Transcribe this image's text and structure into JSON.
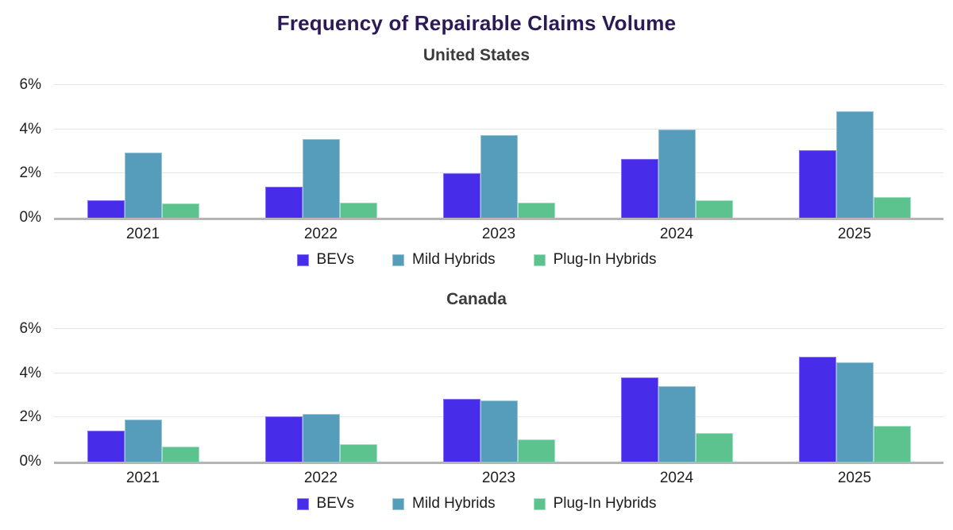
{
  "header": {
    "title": "Frequency of Repairable Claims Volume"
  },
  "colors": {
    "title": "#2c1a56",
    "subtitle": "#3b3b3b",
    "axis_label": "#1f1f1f",
    "gridline": "#e7e7e7",
    "baseline": "#b5b5b5",
    "background": "#ffffff"
  },
  "chart_data": [
    {
      "type": "bar",
      "title": "United States",
      "categories": [
        "2021",
        "2022",
        "2023",
        "2024",
        "2025"
      ],
      "series": [
        {
          "name": "BEVs",
          "color": "#472ce9",
          "border_color": "#8a76f2",
          "values": [
            0.8,
            1.4,
            2.0,
            2.65,
            3.05
          ]
        },
        {
          "name": "Mild Hybrids",
          "color": "#559dbb",
          "border_color": "#9cc6d8",
          "values": [
            2.95,
            3.55,
            3.75,
            4.0,
            4.8
          ]
        },
        {
          "name": "Plug-In Hybrids",
          "color": "#5cc28e",
          "border_color": "#a3dfc2",
          "values": [
            0.65,
            0.7,
            0.7,
            0.8,
            0.95
          ]
        }
      ],
      "ylabel": "",
      "xlabel": "",
      "ylim": [
        0,
        6
      ],
      "yticks": [
        {
          "value": 0,
          "label": "0%"
        },
        {
          "value": 2,
          "label": "2%"
        },
        {
          "value": 4,
          "label": "4%"
        },
        {
          "value": 6,
          "label": "6%"
        }
      ],
      "grid": true,
      "legend_position": "bottom"
    },
    {
      "type": "bar",
      "title": "Canada",
      "categories": [
        "2021",
        "2022",
        "2023",
        "2024",
        "2025"
      ],
      "series": [
        {
          "name": "BEVs",
          "color": "#472ce9",
          "border_color": "#8a76f2",
          "values": [
            1.4,
            2.05,
            2.85,
            3.8,
            4.75
          ]
        },
        {
          "name": "Mild Hybrids",
          "color": "#559dbb",
          "border_color": "#9cc6d8",
          "values": [
            1.9,
            2.15,
            2.75,
            3.4,
            4.5
          ]
        },
        {
          "name": "Plug-In Hybrids",
          "color": "#5cc28e",
          "border_color": "#a3dfc2",
          "values": [
            0.7,
            0.8,
            1.0,
            1.3,
            1.6
          ]
        }
      ],
      "ylabel": "",
      "xlabel": "",
      "ylim": [
        0,
        6
      ],
      "yticks": [
        {
          "value": 0,
          "label": "0%"
        },
        {
          "value": 2,
          "label": "2%"
        },
        {
          "value": 4,
          "label": "4%"
        },
        {
          "value": 6,
          "label": "6%"
        }
      ],
      "grid": true,
      "legend_position": "bottom"
    }
  ]
}
